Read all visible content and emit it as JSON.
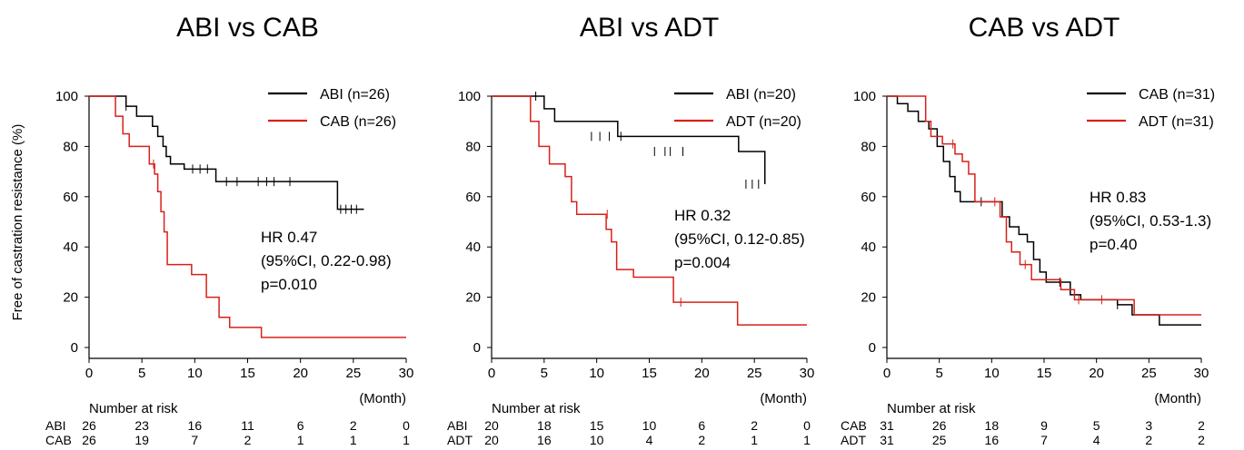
{
  "figure": {
    "ylabel": "Free of castration resistance (%)"
  },
  "chart_data": [
    {
      "type": "line",
      "title": "ABI vs CAB",
      "xlabel": "(Month)",
      "ylabel": "Free of castration resistance (%)",
      "xlim": [
        0,
        30
      ],
      "ylim": [
        0,
        100
      ],
      "xticks": [
        0,
        5,
        10,
        15,
        20,
        25,
        30
      ],
      "yticks": [
        0,
        20,
        40,
        60,
        80,
        100
      ],
      "grid": false,
      "legend_position": "top-right",
      "annotation": [
        "HR 0.47",
        " (95%CI, 0.22-0.98)",
        "p=0.010"
      ],
      "risk_table": {
        "heading": "Number at risk",
        "times": [
          0,
          5,
          10,
          15,
          20,
          25,
          30
        ],
        "rows": [
          {
            "label": "ABI",
            "values": [
              26,
              23,
              16,
              11,
              6,
              2,
              0
            ]
          },
          {
            "label": "CAB",
            "values": [
              26,
              19,
              7,
              2,
              1,
              1,
              1
            ]
          }
        ]
      },
      "series": [
        {
          "name": "ABI (n=26)",
          "color": "#000000",
          "x": [
            0,
            2,
            3.5,
            4.5,
            6,
            6.5,
            7,
            7.3,
            7.7,
            8,
            8.5,
            9,
            12,
            23.5,
            26
          ],
          "y": [
            100,
            100,
            96,
            92,
            88,
            84,
            80,
            76,
            73,
            73,
            73,
            71,
            66,
            55,
            55
          ],
          "censored": [
            [
              3.5,
              96
            ],
            [
              9.8,
              71
            ],
            [
              10.5,
              71
            ],
            [
              11.2,
              71
            ],
            [
              13,
              66
            ],
            [
              14,
              66
            ],
            [
              16,
              66
            ],
            [
              16.8,
              66
            ],
            [
              17.5,
              66
            ],
            [
              19,
              66
            ],
            [
              23.8,
              55
            ],
            [
              24.3,
              55
            ],
            [
              24.8,
              55
            ],
            [
              25.3,
              55
            ]
          ]
        },
        {
          "name": "CAB (n=26)",
          "color": "#d8201a",
          "x": [
            0,
            2.5,
            3.2,
            3.8,
            5.7,
            6.2,
            6.5,
            6.8,
            7.1,
            7.4,
            9.7,
            11.1,
            12.3,
            13.3,
            16.3,
            30
          ],
          "y": [
            100,
            92,
            85,
            80,
            73,
            69,
            62,
            54,
            46,
            33,
            29,
            20,
            12,
            8,
            4,
            4
          ],
          "censored": [
            [
              6.1,
              73
            ]
          ]
        }
      ]
    },
    {
      "type": "line",
      "title": "ABI vs ADT",
      "xlabel": "(Month)",
      "ylabel": "",
      "xlim": [
        0,
        30
      ],
      "ylim": [
        0,
        100
      ],
      "xticks": [
        0,
        5,
        10,
        15,
        20,
        25,
        30
      ],
      "yticks": [
        0,
        20,
        40,
        60,
        80,
        100
      ],
      "grid": false,
      "legend_position": "top-right",
      "annotation": [
        "HR 0.32",
        " (95%CI, 0.12-0.85)",
        "p=0.004"
      ],
      "risk_table": {
        "heading": "Number at risk",
        "times": [
          0,
          5,
          10,
          15,
          20,
          25,
          30
        ],
        "rows": [
          {
            "label": "ABI",
            "values": [
              20,
              18,
              15,
              10,
              6,
              2,
              0
            ]
          },
          {
            "label": "ADT",
            "values": [
              20,
              16,
              10,
              4,
              2,
              1,
              1
            ]
          }
        ]
      },
      "series": [
        {
          "name": "ABI (n=20)",
          "color": "#000000",
          "x": [
            0,
            4,
            5,
            6,
            12,
            23.5,
            26
          ],
          "y": [
            100,
            100,
            95,
            90,
            84,
            78,
            65
          ],
          "censored": [
            [
              4.2,
              100
            ],
            [
              9.5,
              84
            ],
            [
              10.3,
              84
            ],
            [
              11.2,
              84
            ],
            [
              12.3,
              84
            ],
            [
              15.5,
              78
            ],
            [
              16.5,
              78
            ],
            [
              17,
              78
            ],
            [
              18.2,
              78
            ],
            [
              24.2,
              65
            ],
            [
              24.8,
              65
            ],
            [
              25.4,
              65
            ]
          ]
        },
        {
          "name": "ADT (n=20)",
          "color": "#d8201a",
          "x": [
            0,
            3.7,
            4.5,
            5.5,
            7,
            7.6,
            8.1,
            10.9,
            11.4,
            11.9,
            13.5,
            17.3,
            23.4,
            30
          ],
          "y": [
            100,
            90,
            80,
            73,
            68,
            58,
            53,
            47,
            42,
            31,
            28,
            18,
            9,
            9
          ],
          "censored": [
            [
              11,
              53
            ],
            [
              18,
              18
            ]
          ]
        }
      ]
    },
    {
      "type": "line",
      "title": "CAB vs ADT",
      "xlabel": "(Month)",
      "ylabel": "",
      "xlim": [
        0,
        30
      ],
      "ylim": [
        0,
        100
      ],
      "xticks": [
        0,
        5,
        10,
        15,
        20,
        25,
        30
      ],
      "yticks": [
        0,
        20,
        40,
        60,
        80,
        100
      ],
      "grid": false,
      "legend_position": "top-right",
      "annotation": [
        "HR 0.83",
        " (95%CI, 0.53-1.3)",
        "p=0.40"
      ],
      "risk_table": {
        "heading": "Number at risk",
        "times": [
          0,
          5,
          10,
          15,
          20,
          25,
          30
        ],
        "rows": [
          {
            "label": "CAB",
            "values": [
              31,
              26,
              18,
              9,
              5,
              3,
              2
            ]
          },
          {
            "label": "ADT",
            "values": [
              31,
              25,
              16,
              7,
              4,
              2,
              2
            ]
          }
        ]
      },
      "series": [
        {
          "name": "CAB (n=31)",
          "color": "#000000",
          "x": [
            0,
            1,
            2,
            3,
            4,
            4.8,
            5.4,
            6,
            6.5,
            7,
            7.6,
            11,
            11.7,
            12.6,
            13.4,
            14,
            14.6,
            15.2,
            17.5,
            18.5,
            22,
            23.4,
            26,
            30
          ],
          "y": [
            100,
            97,
            94,
            90,
            87,
            80,
            74,
            68,
            62,
            58,
            58,
            52,
            48,
            45,
            42,
            35,
            30,
            26,
            21,
            19,
            17,
            13,
            9,
            9
          ],
          "censored": [
            [
              9,
              58
            ],
            [
              16.5,
              26
            ],
            [
              22,
              17
            ]
          ]
        },
        {
          "name": "ADT (n=31)",
          "color": "#d8201a",
          "x": [
            0,
            2.2,
            3.7,
            4.2,
            5.3,
            6.5,
            7.2,
            7.8,
            8.4,
            10.8,
            11.4,
            11.9,
            12.7,
            13.8,
            16.6,
            17.9,
            23.6,
            30
          ],
          "y": [
            100,
            100,
            90,
            84,
            81,
            77,
            74,
            69,
            58,
            52,
            42,
            38,
            33,
            27,
            23,
            19,
            13,
            13
          ],
          "censored": [
            [
              6.3,
              81
            ],
            [
              10.3,
              58
            ],
            [
              13.2,
              33
            ],
            [
              18.3,
              19
            ],
            [
              20.5,
              19
            ]
          ]
        }
      ]
    }
  ]
}
